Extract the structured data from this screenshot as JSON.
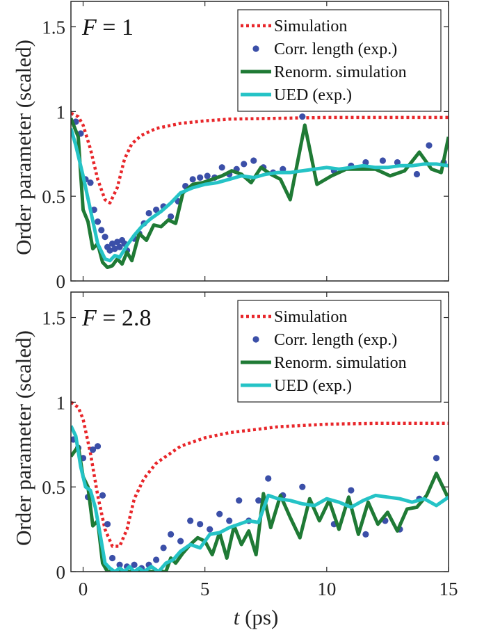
{
  "chart_data": [
    {
      "type": "line",
      "panel_label": {
        "variable": "F",
        "op": " = ",
        "value": "1"
      },
      "xlim": [
        -0.5,
        15
      ],
      "ylim": [
        0,
        1.65
      ],
      "xticks": [
        0,
        5,
        10,
        15
      ],
      "yticks": [
        {
          "v": 0,
          "label": "0"
        },
        {
          "v": 0.5,
          "label": "0.5"
        },
        {
          "v": 1,
          "label": "1"
        },
        {
          "v": 1.5,
          "label": "1.5"
        }
      ],
      "legend_position": "top-right",
      "series": [
        {
          "name": "Simulation",
          "style": "dotted",
          "color": "#e8262a",
          "x": [
            -0.5,
            -0.2,
            0,
            0.3,
            0.6,
            0.9,
            1.1,
            1.4,
            1.7,
            2,
            2.4,
            3,
            4,
            5,
            6,
            8,
            10,
            12,
            15
          ],
          "y": [
            0.99,
            0.97,
            0.92,
            0.78,
            0.6,
            0.48,
            0.46,
            0.55,
            0.72,
            0.81,
            0.86,
            0.9,
            0.93,
            0.945,
            0.955,
            0.96,
            0.965,
            0.965,
            0.965
          ]
        },
        {
          "name": "Corr. length (exp.)",
          "style": "markers",
          "color": "#3b4fa8",
          "x": [
            -0.3,
            -0.1,
            0.1,
            0.3,
            0.45,
            0.6,
            0.75,
            0.9,
            1,
            1.1,
            1.2,
            1.3,
            1.4,
            1.5,
            1.6,
            1.7,
            1.8,
            2.1,
            2.3,
            2.5,
            2.7,
            3,
            3.3,
            3.6,
            3.9,
            4.2,
            4.5,
            4.8,
            5.1,
            5.4,
            5.7,
            6,
            6.3,
            6.6,
            7,
            7.4,
            7.8,
            8.2,
            9,
            10.3,
            11,
            11.6,
            12.3,
            12.9,
            13.7,
            14.2,
            14.8
          ],
          "y": [
            0.94,
            0.87,
            0.6,
            0.58,
            0.42,
            0.35,
            0.3,
            0.26,
            0.2,
            0.18,
            0.22,
            0.19,
            0.23,
            0.2,
            0.24,
            0.22,
            0.18,
            0.25,
            0.28,
            0.34,
            0.4,
            0.42,
            0.44,
            0.38,
            0.47,
            0.56,
            0.6,
            0.61,
            0.62,
            0.61,
            0.67,
            0.63,
            0.66,
            0.69,
            0.71,
            0.67,
            0.64,
            0.66,
            0.97,
            0.65,
            0.68,
            0.7,
            0.71,
            0.7,
            0.63,
            0.8,
            0.7
          ]
        },
        {
          "name": "Renorm. simulation",
          "style": "solid",
          "color": "#1f7a35",
          "x": [
            -0.5,
            -0.2,
            0,
            0.2,
            0.4,
            0.6,
            0.8,
            1,
            1.2,
            1.4,
            1.6,
            1.8,
            2,
            2.3,
            2.6,
            2.9,
            3.2,
            3.5,
            3.8,
            4.1,
            4.5,
            4.9,
            5.3,
            5.7,
            6.1,
            6.5,
            6.9,
            7.3,
            7.7,
            8.1,
            8.5,
            9.1,
            9.6,
            10.2,
            10.8,
            11.4,
            12,
            12.6,
            13.2,
            13.8,
            14.3,
            14.7,
            15
          ],
          "y": [
            0.96,
            0.85,
            0.42,
            0.35,
            0.19,
            0.22,
            0.11,
            0.08,
            0.09,
            0.13,
            0.1,
            0.17,
            0.12,
            0.28,
            0.24,
            0.33,
            0.32,
            0.36,
            0.34,
            0.52,
            0.57,
            0.58,
            0.6,
            0.62,
            0.65,
            0.63,
            0.58,
            0.67,
            0.63,
            0.6,
            0.48,
            0.92,
            0.57,
            0.62,
            0.66,
            0.66,
            0.66,
            0.62,
            0.65,
            0.76,
            0.66,
            0.64,
            0.85
          ]
        },
        {
          "name": "UED (exp.)",
          "style": "solid",
          "color": "#25c3c6",
          "x": [
            -0.5,
            -0.3,
            0,
            0.3,
            0.6,
            0.9,
            1.1,
            1.3,
            1.5,
            1.8,
            2.1,
            2.4,
            2.8,
            3.2,
            3.6,
            4,
            4.5,
            5,
            5.5,
            6,
            6.5,
            7,
            7.5,
            8,
            8.5,
            9,
            9.5,
            10,
            10.5,
            11,
            11.5,
            12,
            12.5,
            13,
            13.5,
            14,
            14.5,
            15
          ],
          "y": [
            0.9,
            0.8,
            0.62,
            0.42,
            0.22,
            0.13,
            0.12,
            0.15,
            0.14,
            0.21,
            0.27,
            0.32,
            0.37,
            0.41,
            0.46,
            0.52,
            0.55,
            0.57,
            0.58,
            0.6,
            0.62,
            0.61,
            0.63,
            0.64,
            0.64,
            0.65,
            0.66,
            0.67,
            0.66,
            0.67,
            0.68,
            0.67,
            0.67,
            0.68,
            0.68,
            0.69,
            0.69,
            0.68
          ]
        }
      ]
    },
    {
      "type": "line",
      "panel_label": {
        "variable": "F",
        "op": " = ",
        "value": "2.8"
      },
      "xlim": [
        -0.5,
        15
      ],
      "ylim": [
        0,
        1.65
      ],
      "xticks": [
        0,
        5,
        10,
        15
      ],
      "yticks": [
        {
          "v": 0,
          "label": "0"
        },
        {
          "v": 0.5,
          "label": "0.5"
        },
        {
          "v": 1,
          "label": "1"
        },
        {
          "v": 1.5,
          "label": "1.5"
        }
      ],
      "legend_position": "top-right",
      "series": [
        {
          "name": "Simulation",
          "style": "dotted",
          "color": "#e8262a",
          "x": [
            -0.5,
            -0.2,
            0,
            0.3,
            0.6,
            0.9,
            1.2,
            1.5,
            1.8,
            2.1,
            2.5,
            3,
            4,
            5,
            6,
            8,
            10,
            12,
            15
          ],
          "y": [
            1.0,
            0.97,
            0.9,
            0.7,
            0.45,
            0.25,
            0.15,
            0.15,
            0.25,
            0.43,
            0.55,
            0.64,
            0.74,
            0.79,
            0.82,
            0.855,
            0.87,
            0.875,
            0.875
          ]
        },
        {
          "name": "Corr. length (exp.)",
          "style": "markers",
          "color": "#3b4fa8",
          "x": [
            -0.4,
            -0.2,
            0,
            0.2,
            0.4,
            0.6,
            0.8,
            1,
            1.2,
            1.5,
            1.8,
            2.1,
            2.4,
            2.7,
            3,
            3.3,
            3.6,
            4,
            4.4,
            4.8,
            5.2,
            5.6,
            6,
            6.4,
            6.8,
            7.2,
            7.6,
            8.2,
            9,
            10.3,
            11,
            11.6,
            12.4,
            13,
            13.8,
            14.5
          ],
          "y": [
            0.78,
            0.73,
            0.67,
            0.44,
            0.72,
            0.74,
            0.45,
            0.28,
            0.08,
            0.04,
            0.03,
            0.04,
            0.02,
            0.04,
            0.07,
            0.14,
            0.22,
            0.18,
            0.3,
            0.28,
            0.25,
            0.34,
            0.3,
            0.42,
            0.3,
            0.42,
            0.55,
            0.45,
            0.5,
            0.28,
            0.48,
            0.22,
            0.3,
            0.25,
            0.43,
            0.67
          ]
        },
        {
          "name": "Renorm. simulation",
          "style": "solid",
          "color": "#1f7a35",
          "x": [
            -0.5,
            -0.2,
            0,
            0.2,
            0.4,
            0.6,
            0.8,
            1,
            1.3,
            1.6,
            1.9,
            2.2,
            2.6,
            3,
            3.4,
            3.6,
            3.8,
            4.1,
            4.4,
            4.7,
            5,
            5.3,
            5.6,
            5.9,
            6.2,
            6.5,
            6.8,
            7.1,
            7.4,
            7.7,
            8.1,
            8.5,
            8.9,
            9.3,
            9.7,
            10.1,
            10.5,
            10.9,
            11.3,
            11.7,
            12.1,
            12.5,
            12.9,
            13.3,
            13.7,
            14.1,
            14.5,
            15
          ],
          "y": [
            0.68,
            0.74,
            0.56,
            0.5,
            0.27,
            0.3,
            0.05,
            0.0,
            0.0,
            0.0,
            0.0,
            0.0,
            0.0,
            0.0,
            0.0,
            0.08,
            0.05,
            0.11,
            0.16,
            0.2,
            0.18,
            0.1,
            0.23,
            0.08,
            0.27,
            0.16,
            0.24,
            0.1,
            0.46,
            0.26,
            0.45,
            0.32,
            0.2,
            0.43,
            0.3,
            0.42,
            0.25,
            0.44,
            0.22,
            0.41,
            0.28,
            0.35,
            0.24,
            0.37,
            0.38,
            0.45,
            0.58,
            0.43
          ]
        },
        {
          "name": "UED (exp.)",
          "style": "solid",
          "color": "#25c3c6",
          "x": [
            -0.5,
            -0.3,
            -0.1,
            0.1,
            0.3,
            0.5,
            0.7,
            0.9,
            1.1,
            1.3,
            1.5,
            1.7,
            1.9,
            2.1,
            2.3,
            2.5,
            2.8,
            3.1,
            3.4,
            3.7,
            4,
            4.4,
            4.8,
            5.2,
            5.6,
            6,
            6.4,
            6.8,
            7.2,
            7.6,
            8,
            8.5,
            9,
            9.5,
            10,
            10.5,
            11,
            11.5,
            12,
            12.5,
            13,
            13.5,
            14,
            14.5,
            15
          ],
          "y": [
            0.86,
            0.8,
            0.62,
            0.5,
            0.48,
            0.38,
            0.22,
            0.05,
            0.02,
            0.0,
            0.02,
            0.0,
            0.03,
            0.0,
            0.02,
            0.0,
            0.03,
            0.0,
            0.05,
            0.07,
            0.12,
            0.16,
            0.14,
            0.22,
            0.23,
            0.26,
            0.28,
            0.3,
            0.29,
            0.45,
            0.43,
            0.42,
            0.4,
            0.39,
            0.43,
            0.41,
            0.38,
            0.42,
            0.45,
            0.44,
            0.43,
            0.41,
            0.43,
            0.39,
            0.44
          ]
        }
      ]
    }
  ],
  "axes": {
    "xlabel_var": "t",
    "xlabel_unit": " (ps)",
    "ylabel": "Order parameter (scaled)"
  }
}
